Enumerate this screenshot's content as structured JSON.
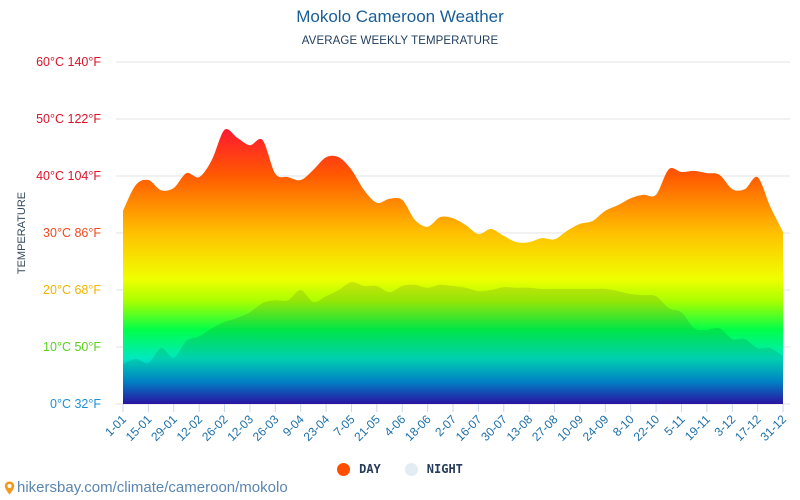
{
  "chart_data": {
    "type": "area",
    "title": "Mokolo Cameroon Weather",
    "subtitle": "AVERAGE WEEKLY TEMPERATURE",
    "xlabel": "",
    "ylabel": "TEMPERATURE",
    "ylim": [
      0,
      60
    ],
    "grid": true,
    "y_ticks": [
      {
        "c": 0,
        "label": "0°C 32°F",
        "color": "#1e90d8"
      },
      {
        "c": 10,
        "label": "10°C 50°F",
        "color": "#5ad21e"
      },
      {
        "c": 20,
        "label": "20°C 68°F",
        "color": "#f0b400"
      },
      {
        "c": 30,
        "label": "30°C 86°F",
        "color": "#f04a1e"
      },
      {
        "c": 40,
        "label": "40°C 104°F",
        "color": "#e0142a"
      },
      {
        "c": 50,
        "label": "50°C 122°F",
        "color": "#d8142a"
      },
      {
        "c": 60,
        "label": "60°C 140°F",
        "color": "#d8142a"
      }
    ],
    "x_tick_labels": [
      "1-01",
      "15-01",
      "29-01",
      "12-02",
      "26-02",
      "12-03",
      "26-03",
      "9-04",
      "23-04",
      "7-05",
      "21-05",
      "4-06",
      "18-06",
      "2-07",
      "16-07",
      "30-07",
      "13-08",
      "27-08",
      "10-09",
      "24-09",
      "8-10",
      "22-10",
      "5-11",
      "19-11",
      "3-12",
      "17-12",
      "31-12"
    ],
    "x_weeks_count": 53,
    "legend_position": "bottom-center",
    "series": [
      {
        "name": "DAY",
        "color": "#ff4e00",
        "values": [
          33.9,
          38.4,
          39.3,
          37.5,
          37.9,
          40.5,
          39.8,
          42.8,
          48.1,
          46.7,
          45.4,
          46.3,
          40.4,
          39.8,
          39.3,
          41.1,
          43.3,
          43.3,
          41.1,
          37.5,
          35.3,
          36.0,
          35.8,
          32.3,
          31.1,
          32.8,
          32.6,
          31.4,
          29.8,
          30.7,
          29.5,
          28.4,
          28.4,
          29.1,
          28.9,
          30.4,
          31.6,
          32.1,
          33.9,
          34.9,
          36.1,
          36.7,
          36.7,
          41.2,
          40.7,
          40.9,
          40.5,
          40.2,
          37.7,
          37.7,
          39.8,
          34.6,
          30.2
        ]
      },
      {
        "name": "NIGHT",
        "color": "#e4ecf3",
        "values": [
          7.0,
          7.9,
          7.2,
          9.8,
          8.1,
          11.1,
          11.9,
          13.3,
          14.4,
          15.1,
          16.1,
          17.7,
          18.2,
          18.2,
          20.0,
          17.9,
          18.9,
          20.0,
          21.4,
          20.7,
          20.7,
          19.6,
          20.7,
          20.9,
          20.4,
          20.9,
          20.7,
          20.4,
          19.8,
          20.0,
          20.5,
          20.4,
          20.4,
          20.2,
          20.2,
          20.2,
          20.2,
          20.2,
          20.2,
          19.8,
          19.3,
          19.1,
          18.9,
          16.8,
          16.1,
          13.3,
          13.0,
          13.3,
          11.4,
          11.4,
          9.8,
          9.8,
          8.4
        ]
      }
    ]
  },
  "legend": {
    "day_label": "DAY",
    "night_label": "NIGHT"
  },
  "footer": {
    "source_text": "hikersbay.com/climate/cameroon/mokolo",
    "icon": "map-pin-icon"
  }
}
